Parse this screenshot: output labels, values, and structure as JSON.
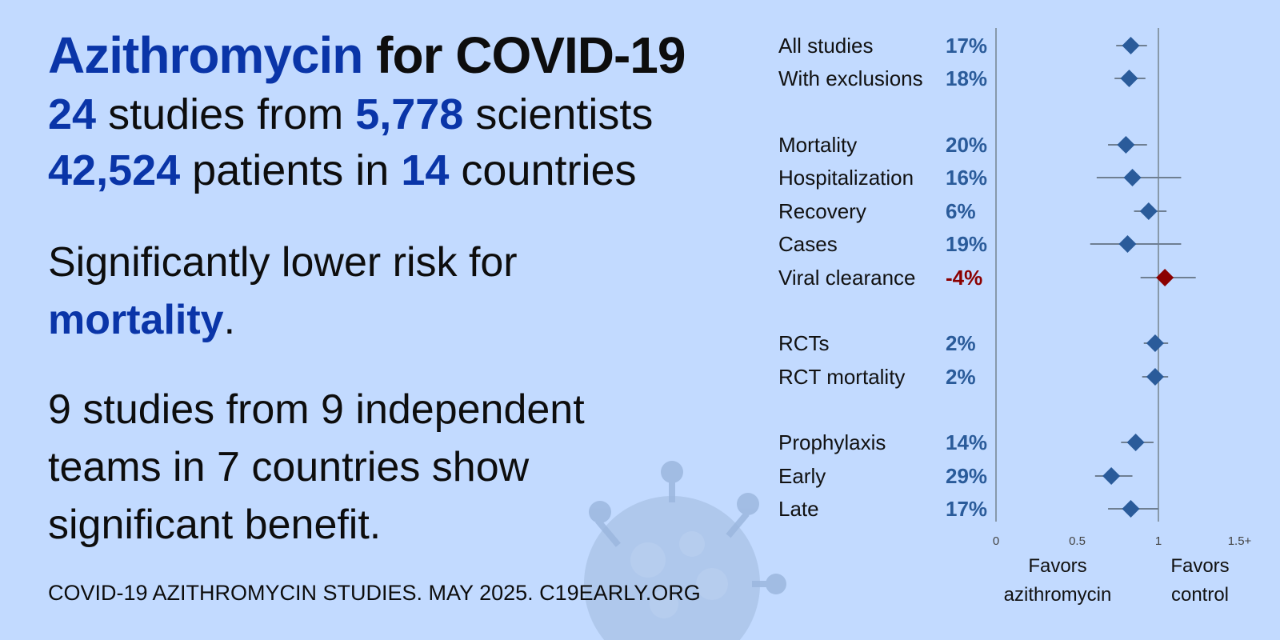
{
  "headline": {
    "drug": "Azithromycin",
    "for_condition": " for COVID-19"
  },
  "stats": {
    "studies": "24",
    "studies_text": " studies from ",
    "scientists": "5,778",
    "scientists_text": " scientists",
    "patients": "42,524",
    "patients_text": " patients in ",
    "countries": "14",
    "countries_text": " countries"
  },
  "finding": {
    "prefix": "Significantly lower risk for ",
    "outcome": "mortality",
    "suffix": "."
  },
  "benefit": {
    "line1": "9 studies from 9 independent",
    "line2": "teams in 7 countries show",
    "line3": "significant benefit."
  },
  "footer": "COVID-19 AZITHROMYCIN STUDIES. MAY 2025. C19EARLY.ORG",
  "colors": {
    "accent": "#0a35a8",
    "marker": "#2a5b9a",
    "negative": "#8b0000",
    "background": "#c2daff",
    "whisker": "#6f7f92"
  },
  "chart_data": {
    "type": "forest",
    "rows": [
      {
        "label": "All studies",
        "pct": "17%",
        "est": 0.83,
        "lo": 0.74,
        "hi": 0.93
      },
      {
        "label": "With exclusions",
        "pct": "18%",
        "est": 0.82,
        "lo": 0.73,
        "hi": 0.92
      },
      {
        "label": "Mortality",
        "pct": "20%",
        "est": 0.8,
        "lo": 0.69,
        "hi": 0.93
      },
      {
        "label": "Hospitalization",
        "pct": "16%",
        "est": 0.84,
        "lo": 0.62,
        "hi": 1.14
      },
      {
        "label": "Recovery",
        "pct": "6%",
        "est": 0.94,
        "lo": 0.85,
        "hi": 1.05
      },
      {
        "label": "Cases",
        "pct": "19%",
        "est": 0.81,
        "lo": 0.58,
        "hi": 1.14
      },
      {
        "label": "Viral clearance",
        "pct": "-4%",
        "est": 1.04,
        "lo": 0.89,
        "hi": 1.23
      },
      {
        "label": "RCTs",
        "pct": "2%",
        "est": 0.98,
        "lo": 0.91,
        "hi": 1.06
      },
      {
        "label": "RCT mortality",
        "pct": "2%",
        "est": 0.98,
        "lo": 0.9,
        "hi": 1.06
      },
      {
        "label": "Prophylaxis",
        "pct": "14%",
        "est": 0.86,
        "lo": 0.77,
        "hi": 0.97
      },
      {
        "label": "Early",
        "pct": "29%",
        "est": 0.71,
        "lo": 0.61,
        "hi": 0.84
      },
      {
        "label": "Late",
        "pct": "17%",
        "est": 0.83,
        "lo": 0.69,
        "hi": 1.0
      }
    ],
    "xlim": [
      0,
      1.5
    ],
    "ticks": [
      "0",
      "0.5",
      "1",
      "1.5+"
    ],
    "tick_values": [
      0,
      0.5,
      1,
      1.5
    ],
    "null_value": 1,
    "favors_left": [
      "Favors",
      "azithromycin"
    ],
    "favors_right": [
      "Favors",
      "control"
    ]
  }
}
